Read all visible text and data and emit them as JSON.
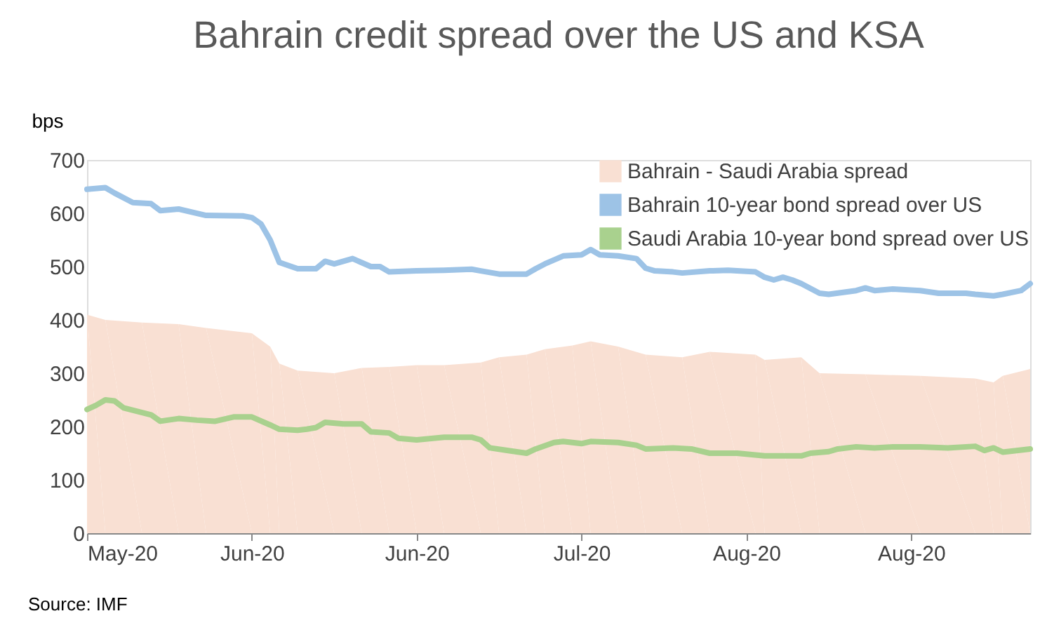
{
  "chart_data": {
    "type": "line",
    "title": "Bahrain credit spread over the US and KSA",
    "ylabel": "bps",
    "xlim": [
      "2020-05-25",
      "2020-09-05"
    ],
    "xticks": [
      {
        "value": "2020-05-25",
        "label": "May-20"
      },
      {
        "value": "2020-06-12",
        "label": "Jun-20"
      },
      {
        "value": "2020-06-30",
        "label": "Jun-20"
      },
      {
        "value": "2020-07-18",
        "label": "Jul-20"
      },
      {
        "value": "2020-08-05",
        "label": "Aug-20"
      },
      {
        "value": "2020-08-23",
        "label": "Aug-20"
      }
    ],
    "ylim": [
      0,
      700
    ],
    "yticks": [
      0,
      100,
      200,
      300,
      400,
      500,
      600,
      700
    ],
    "grid": false,
    "legend": "top right",
    "annotations": [
      "Source: IMF"
    ],
    "series": [
      {
        "name": "Bahrain - Saudi Arabia spread",
        "type": "area",
        "color": "#f9e0d3",
        "x": [
          "2020-05-25",
          "2020-05-27",
          "2020-05-31",
          "2020-06-04",
          "2020-06-07",
          "2020-06-12",
          "2020-06-14",
          "2020-06-15",
          "2020-06-17",
          "2020-06-21",
          "2020-06-24",
          "2020-06-27",
          "2020-06-30",
          "2020-07-03",
          "2020-07-07",
          "2020-07-09",
          "2020-07-12",
          "2020-07-14",
          "2020-07-17",
          "2020-07-19",
          "2020-07-22",
          "2020-07-25",
          "2020-07-29",
          "2020-08-01",
          "2020-08-06",
          "2020-08-07",
          "2020-08-11",
          "2020-08-13",
          "2020-08-18",
          "2020-08-24",
          "2020-08-30",
          "2020-09-01",
          "2020-09-02",
          "2020-09-05"
        ],
        "values": [
          410,
          400,
          395,
          392,
          385,
          375,
          350,
          318,
          305,
          300,
          310,
          312,
          315,
          315,
          320,
          330,
          335,
          345,
          352,
          360,
          350,
          335,
          330,
          340,
          335,
          325,
          330,
          300,
          298,
          295,
          290,
          283,
          295,
          308
        ]
      },
      {
        "name": "Bahrain 10-year  bond spread over US",
        "color": "#9dc3e6",
        "x": [
          "2020-05-25",
          "2020-05-27",
          "2020-05-28",
          "2020-05-30",
          "2020-06-01",
          "2020-06-02",
          "2020-06-04",
          "2020-06-07",
          "2020-06-11",
          "2020-06-12",
          "2020-06-13",
          "2020-06-14",
          "2020-06-15",
          "2020-06-17",
          "2020-06-19",
          "2020-06-20",
          "2020-06-21",
          "2020-06-23",
          "2020-06-25",
          "2020-06-26",
          "2020-06-27",
          "2020-06-30",
          "2020-07-03",
          "2020-07-06",
          "2020-07-07",
          "2020-07-09",
          "2020-07-12",
          "2020-07-13",
          "2020-07-14",
          "2020-07-16",
          "2020-07-18",
          "2020-07-19",
          "2020-07-20",
          "2020-07-22",
          "2020-07-24",
          "2020-07-25",
          "2020-07-26",
          "2020-07-28",
          "2020-07-29",
          "2020-08-01",
          "2020-08-03",
          "2020-08-06",
          "2020-08-07",
          "2020-08-08",
          "2020-08-09",
          "2020-08-10",
          "2020-08-11",
          "2020-08-13",
          "2020-08-14",
          "2020-08-17",
          "2020-08-18",
          "2020-08-19",
          "2020-08-21",
          "2020-08-24",
          "2020-08-26",
          "2020-08-29",
          "2020-08-30",
          "2020-09-01",
          "2020-09-02",
          "2020-09-04",
          "2020-09-05"
        ],
        "values": [
          645,
          648,
          638,
          620,
          618,
          605,
          608,
          596,
          595,
          592,
          580,
          550,
          508,
          496,
          496,
          510,
          505,
          515,
          500,
          500,
          490,
          492,
          493,
          495,
          492,
          486,
          486,
          496,
          505,
          520,
          522,
          532,
          522,
          520,
          515,
          497,
          492,
          490,
          488,
          492,
          493,
          490,
          480,
          475,
          480,
          475,
          468,
          450,
          448,
          455,
          460,
          455,
          458,
          455,
          450,
          450,
          448,
          445,
          448,
          455,
          468
        ]
      },
      {
        "name": "Saudi Arabia 10-year bond spread over US",
        "color": "#a9d18e",
        "x": [
          "2020-05-25",
          "2020-05-26",
          "2020-05-27",
          "2020-05-28",
          "2020-05-29",
          "2020-06-01",
          "2020-06-02",
          "2020-06-04",
          "2020-06-06",
          "2020-06-08",
          "2020-06-10",
          "2020-06-12",
          "2020-06-14",
          "2020-06-15",
          "2020-06-17",
          "2020-06-18",
          "2020-06-19",
          "2020-06-20",
          "2020-06-22",
          "2020-06-24",
          "2020-06-25",
          "2020-06-27",
          "2020-06-28",
          "2020-06-30",
          "2020-07-03",
          "2020-07-06",
          "2020-07-07",
          "2020-07-08",
          "2020-07-10",
          "2020-07-12",
          "2020-07-13",
          "2020-07-15",
          "2020-07-16",
          "2020-07-18",
          "2020-07-19",
          "2020-07-22",
          "2020-07-24",
          "2020-07-25",
          "2020-07-28",
          "2020-07-30",
          "2020-08-01",
          "2020-08-04",
          "2020-08-07",
          "2020-08-11",
          "2020-08-12",
          "2020-08-14",
          "2020-08-15",
          "2020-08-17",
          "2020-08-19",
          "2020-08-21",
          "2020-08-24",
          "2020-08-27",
          "2020-08-30",
          "2020-08-31",
          "2020-09-01",
          "2020-09-02",
          "2020-09-05"
        ],
        "values": [
          232,
          240,
          250,
          248,
          235,
          222,
          210,
          215,
          212,
          210,
          218,
          218,
          203,
          195,
          193,
          195,
          198,
          208,
          205,
          205,
          190,
          188,
          178,
          175,
          180,
          180,
          175,
          160,
          155,
          150,
          158,
          170,
          172,
          168,
          172,
          170,
          165,
          158,
          160,
          158,
          150,
          150,
          145,
          145,
          150,
          153,
          158,
          162,
          160,
          162,
          162,
          160,
          163,
          155,
          160,
          152,
          158
        ]
      }
    ]
  }
}
